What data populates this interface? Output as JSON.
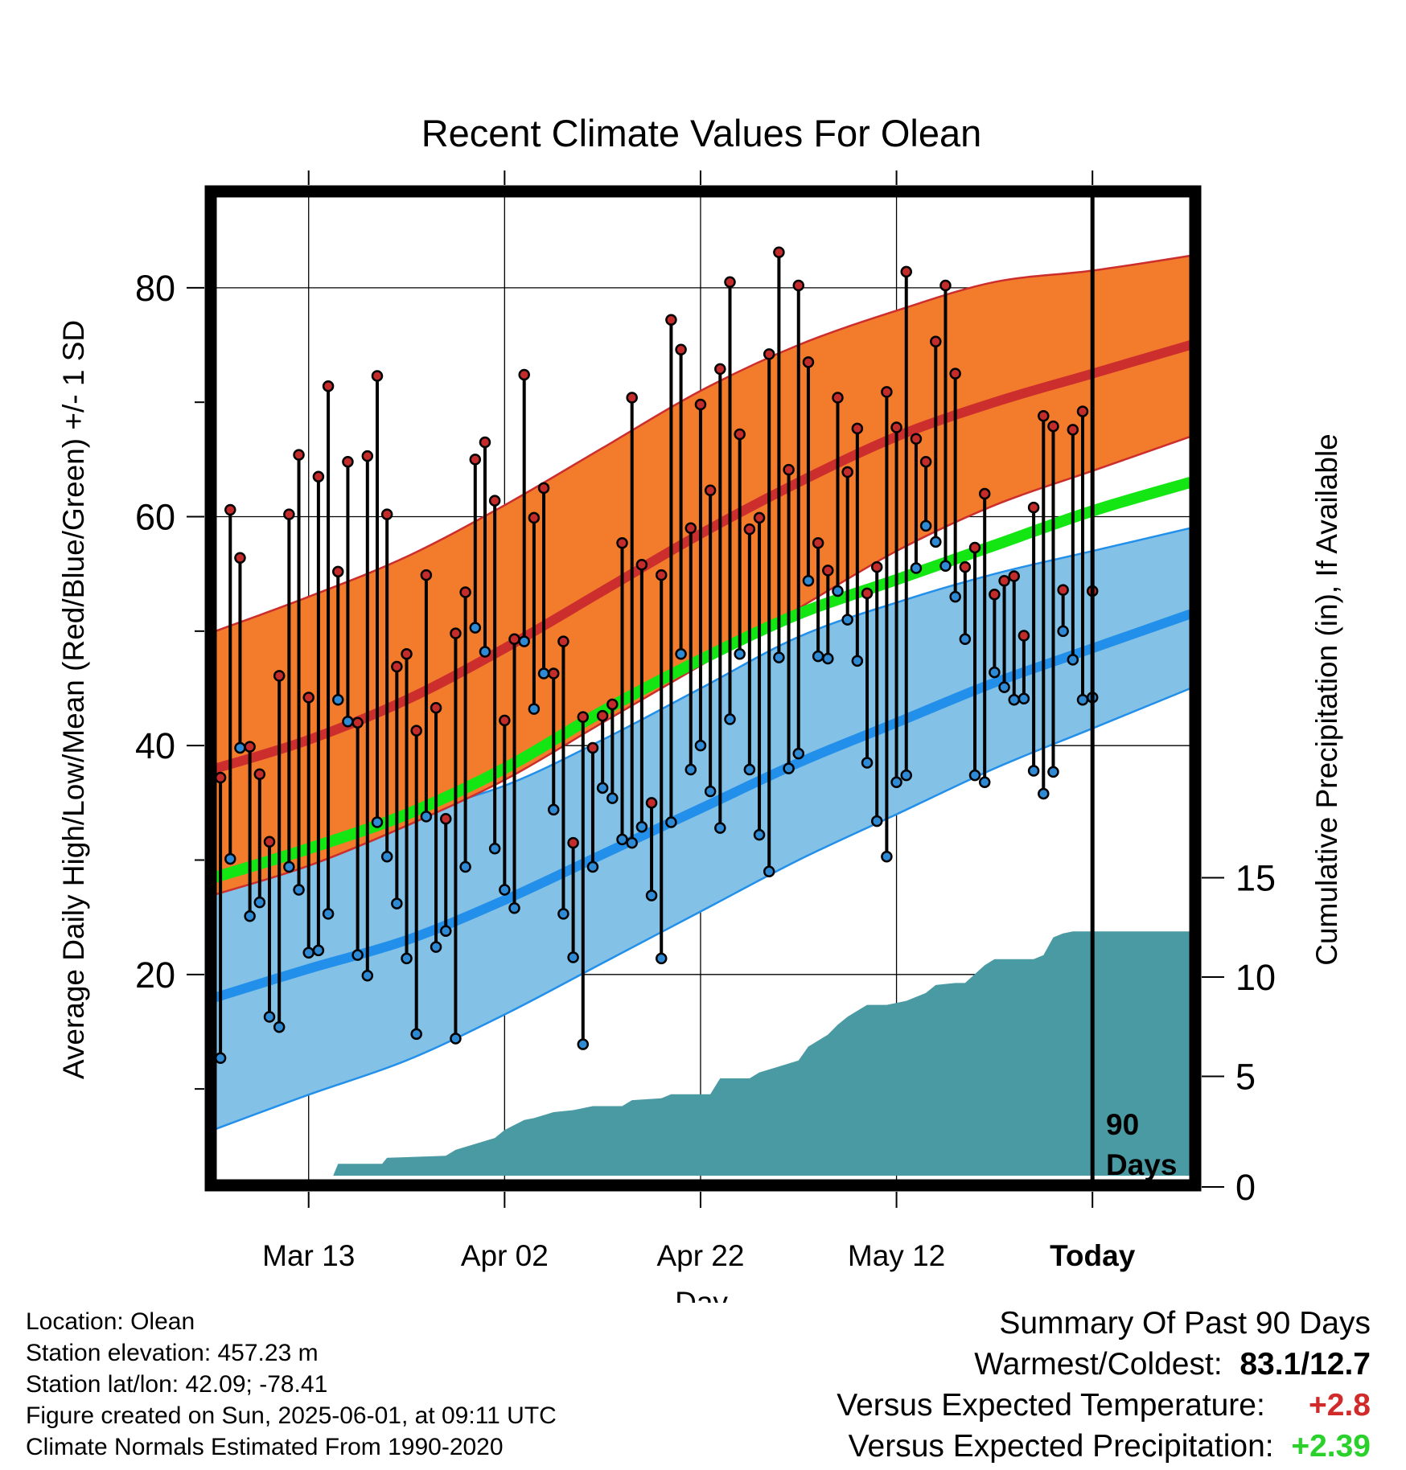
{
  "chart_data": {
    "type": "line",
    "title": "Recent Climate Values For Olean",
    "xlabel": "Day",
    "ylabel": "Average Daily High/Low/Mean (Red/Blue/Green) +/- 1 SD",
    "y2label": "Cumulative Precipitation (in), If Available",
    "x_ticks": [
      "Mar 13",
      "Apr 02",
      "Apr 22",
      "May 12",
      "Today"
    ],
    "y_ticks": [
      "20",
      "40",
      "60",
      "80"
    ],
    "y2_ticks": [
      "0",
      "5",
      "10",
      "15"
    ],
    "ylim": [
      2,
      88
    ],
    "y2lim": [
      0,
      50
    ],
    "xlim": [
      -89.5,
      10
    ],
    "marker_label_line1": "90",
    "marker_label_line2": "Days",
    "colors": {
      "high_band": "#f37b2c",
      "high_mean": "#cc2e2e",
      "low_band": "#83c1e6",
      "low_mean": "#2290ea",
      "mean": "#14e614",
      "precip": "#4a9aa3",
      "high_dot": "#c42b2b",
      "low_dot": "#2f8ad6"
    },
    "normals": {
      "x": [
        -89.5,
        -80,
        -70,
        -60,
        -50,
        -40,
        -30,
        -20,
        -10,
        0,
        10
      ],
      "high_mean": [
        38,
        40.5,
        44,
        48.5,
        53.5,
        58.5,
        63,
        67,
        70,
        72.5,
        75
      ],
      "high_upper": [
        50,
        53,
        56.5,
        61,
        66,
        71,
        75,
        78,
        80.5,
        81.5,
        82.8
      ],
      "high_lower": [
        27,
        29.5,
        33,
        37,
        42,
        47,
        52,
        57,
        61,
        64,
        67
      ],
      "low_mean": [
        18,
        20.5,
        23,
        26.5,
        30.5,
        34.5,
        38.5,
        42,
        45.5,
        48.5,
        51.5
      ],
      "low_upper": [
        29.5,
        31.5,
        34,
        36.5,
        40.5,
        45,
        49.5,
        52.5,
        55,
        57,
        59
      ],
      "low_lower": [
        6.5,
        9.5,
        12.5,
        16.5,
        21,
        25.5,
        30,
        34,
        38,
        41.5,
        45
      ],
      "mean": [
        28.5,
        31,
        34,
        38,
        43,
        47.5,
        51.5,
        54.5,
        57.5,
        60.5,
        63
      ]
    },
    "daily_x_start": -89,
    "daily_high": [
      37.2,
      60.6,
      56.4,
      39.9,
      37.5,
      31.6,
      46.1,
      60.2,
      65.4,
      44.2,
      63.5,
      71.4,
      55.2,
      64.8,
      42.0,
      65.3,
      72.3,
      60.2,
      46.9,
      48.0,
      41.3,
      54.9,
      43.3,
      33.6,
      49.8,
      53.4,
      65.0,
      66.5,
      61.4,
      42.2,
      49.3,
      72.4,
      59.9,
      62.5,
      46.3,
      49.1,
      31.5,
      42.5,
      39.8,
      42.6,
      43.6,
      57.7,
      70.4,
      55.8,
      35.0,
      54.9,
      77.2,
      74.6,
      59.0,
      69.8,
      62.3,
      72.9,
      80.5,
      67.2,
      58.9,
      59.9,
      74.2,
      83.1,
      64.1,
      80.2,
      73.5,
      57.7,
      55.3,
      70.4,
      63.9,
      67.7,
      53.3,
      55.6,
      70.9,
      67.8,
      81.4,
      66.8,
      64.8,
      75.3,
      80.2,
      72.5,
      55.6,
      57.3,
      62.0,
      53.2,
      54.4,
      54.8,
      49.6,
      60.8,
      68.8,
      67.9,
      53.6,
      67.6,
      69.2,
      53.5
    ],
    "daily_low": [
      12.7,
      30.1,
      39.8,
      25.1,
      26.3,
      16.3,
      15.4,
      29.4,
      27.4,
      21.9,
      22.1,
      25.3,
      44.0,
      42.1,
      21.7,
      19.9,
      33.3,
      30.3,
      26.2,
      21.4,
      14.8,
      33.8,
      22.4,
      23.8,
      14.4,
      29.4,
      50.3,
      48.2,
      31.0,
      27.4,
      25.8,
      49.1,
      43.2,
      46.3,
      34.4,
      25.3,
      21.5,
      13.9,
      29.4,
      36.3,
      35.4,
      31.8,
      31.5,
      32.9,
      26.9,
      21.4,
      33.3,
      48.0,
      37.9,
      40.0,
      36.0,
      32.8,
      42.3,
      48.0,
      37.9,
      32.2,
      29.0,
      47.7,
      38.0,
      39.3,
      54.4,
      47.8,
      47.6,
      53.5,
      51.0,
      47.4,
      38.5,
      33.4,
      30.3,
      36.8,
      37.4,
      55.5,
      59.2,
      57.8,
      55.7,
      53.0,
      49.3,
      37.4,
      36.8,
      46.4,
      45.1,
      44.0,
      44.1,
      37.8,
      35.8,
      37.7,
      50.0,
      47.5,
      44.0,
      44.2
    ],
    "precip": {
      "x": [
        -89.5,
        -77.5,
        -77,
        -72.5,
        -72,
        -66,
        -65,
        -63,
        -61,
        -60,
        -58,
        -57,
        -55,
        -53,
        -51,
        -48,
        -47,
        -44,
        -43,
        -39,
        -38,
        -35,
        -34,
        -32,
        -30,
        -29,
        -27,
        -26,
        -25,
        -24,
        -23,
        -22,
        -21,
        -20,
        -19,
        -17,
        -16,
        -14,
        -13,
        -11,
        -10,
        -8,
        -7,
        -6,
        -5,
        -4,
        -3,
        -2,
        10
      ],
      "y": [
        0,
        0,
        0.6,
        0.6,
        0.9,
        1.0,
        1.3,
        1.6,
        1.9,
        2.3,
        2.8,
        2.9,
        3.2,
        3.3,
        3.5,
        3.5,
        3.8,
        3.9,
        4.1,
        4.1,
        4.9,
        4.9,
        5.2,
        5.5,
        5.8,
        6.5,
        7.1,
        7.6,
        8.0,
        8.3,
        8.6,
        8.6,
        8.6,
        8.7,
        8.8,
        9.2,
        9.6,
        9.7,
        9.7,
        10.6,
        10.9,
        10.9,
        10.9,
        10.9,
        11.1,
        12.0,
        12.2,
        12.3,
        12.3
      ]
    }
  },
  "footer": {
    "location": "Location: Olean",
    "elevation": "Station elevation: 457.23 m",
    "latlon": "Station lat/lon: 42.09; -78.41",
    "created": "Figure created on Sun, 2025-06-01, at 09:11 UTC",
    "normals": "Climate Normals Estimated From 1990-2020"
  },
  "summary": {
    "heading": "Summary Of Past 90 Days",
    "warm_cold_label": "Warmest/Coldest:",
    "warm_cold_value": "83.1/12.7",
    "temp_label": "Versus Expected Temperature:",
    "temp_value": "+2.8",
    "precip_label": "Versus Expected Precipitation:",
    "precip_value": "+2.39"
  }
}
